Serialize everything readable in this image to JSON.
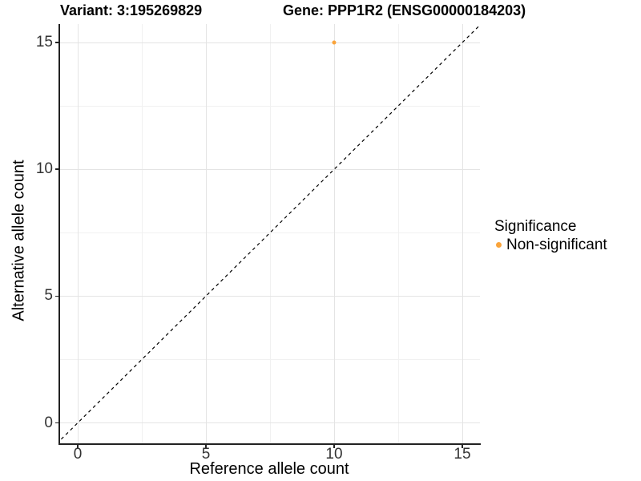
{
  "chart_data": {
    "type": "scatter",
    "titles": {
      "left": "Variant: 3:195269829",
      "right": "Gene: PPP1R2 (ENSG00000184203)"
    },
    "xlabel": "Reference allele count",
    "ylabel": "Alternative allele count",
    "x_ticks": [
      0,
      5,
      10,
      15
    ],
    "y_ticks": [
      0,
      5,
      10,
      15
    ],
    "x_minor_ticks": [
      2.5,
      7.5,
      12.5
    ],
    "y_minor_ticks": [
      2.5,
      7.5,
      12.5
    ],
    "xlim": [
      -0.72,
      15.72
    ],
    "ylim": [
      -0.72,
      15.74
    ],
    "grid": "major+minor",
    "points": [
      {
        "x": 10,
        "y": 15,
        "series": "Non-significant"
      }
    ],
    "reference_line": {
      "kind": "identity y=x",
      "style": "dashed",
      "color": "#000000"
    },
    "legend": {
      "title": "Significance",
      "position": "right",
      "entries": [
        {
          "label": "Non-significant",
          "color": "#FAA43B"
        }
      ]
    },
    "colors": {
      "point": "#FAA43B",
      "major_grid": "#e4e4e4",
      "minor_grid": "#f1f1f1",
      "axis_line": "#222222"
    }
  }
}
